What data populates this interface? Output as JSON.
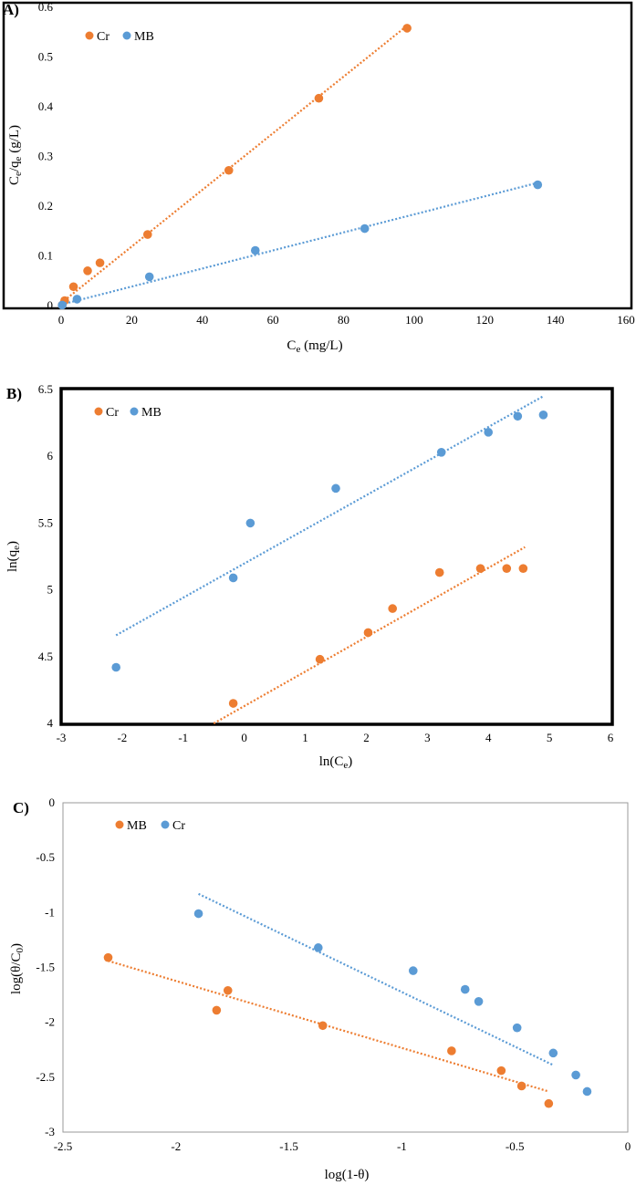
{
  "colors": {
    "orange": "#ED7D31",
    "blue": "#5B9BD5"
  },
  "chart_data": [
    {
      "type": "scatter",
      "panel_label": "A)",
      "xlabel": "Ce (mg/L)",
      "ylabel": "Ce/qe (g/L)",
      "xlim": [
        0,
        160
      ],
      "ylim": [
        0,
        0.6
      ],
      "x_ticks": [
        "0",
        "20",
        "40",
        "60",
        "80",
        "100",
        "120",
        "140",
        "160"
      ],
      "y_ticks": [
        "0",
        "0.1",
        "0.2",
        "0.3",
        "0.4",
        "0.5",
        "0.6"
      ],
      "legend": [
        "Cr",
        "MB"
      ],
      "series": [
        {
          "name": "Cr",
          "color": "orange",
          "x": [
            0.3,
            1,
            3.5,
            7.5,
            11,
            24.5,
            47.5,
            73,
            98
          ],
          "y": [
            0.001,
            0.01,
            0.038,
            0.07,
            0.086,
            0.143,
            0.272,
            0.417,
            0.558
          ],
          "trend": [
            [
              0,
              0.005
            ],
            [
              98,
              0.563
            ]
          ]
        },
        {
          "name": "MB",
          "color": "blue",
          "x": [
            0.3,
            4.5,
            25,
            55,
            86,
            135
          ],
          "y": [
            0.001,
            0.013,
            0.058,
            0.111,
            0.155,
            0.243
          ],
          "trend": [
            [
              0,
              0.002
            ],
            [
              135,
              0.247
            ]
          ]
        }
      ]
    },
    {
      "type": "scatter",
      "panel_label": "B)",
      "xlabel": "ln(Ce)",
      "ylabel": "ln(qe)",
      "xlim": [
        -3,
        6
      ],
      "ylim": [
        4,
        6.5
      ],
      "x_ticks": [
        "-3",
        "-2",
        "-1",
        "0",
        "1",
        "2",
        "3",
        "4",
        "5",
        "6"
      ],
      "y_ticks": [
        "4",
        "4.5",
        "5",
        "5.5",
        "6",
        "6.5"
      ],
      "legend": [
        "Cr",
        "MB"
      ],
      "series": [
        {
          "name": "Cr",
          "color": "orange",
          "x": [
            -0.18,
            1.24,
            2.03,
            2.43,
            3.2,
            3.87,
            4.3,
            4.57
          ],
          "y": [
            4.15,
            4.48,
            4.68,
            4.86,
            5.13,
            5.16,
            5.16,
            5.16
          ],
          "trend": [
            [
              -0.5,
              4.0
            ],
            [
              4.6,
              5.32
            ]
          ]
        },
        {
          "name": "MB",
          "color": "blue",
          "x": [
            -2.1,
            -0.18,
            0.1,
            1.5,
            3.23,
            4.0,
            4.48,
            4.9
          ],
          "y": [
            4.42,
            5.09,
            5.5,
            5.76,
            6.03,
            6.18,
            6.3,
            6.31
          ],
          "trend": [
            [
              -2.1,
              4.66
            ],
            [
              4.9,
              6.45
            ]
          ]
        }
      ]
    },
    {
      "type": "scatter",
      "panel_label": "C)",
      "xlabel": "log(1-θ)",
      "ylabel": "log(θ/C0)",
      "xlim": [
        -2.5,
        0
      ],
      "ylim": [
        -3,
        0
      ],
      "x_ticks": [
        "-2.5",
        "-2",
        "-1.5",
        "-1",
        "-0.5",
        "0"
      ],
      "y_ticks": [
        "0",
        "-0.5",
        "-1",
        "-1.5",
        "-2",
        "-2.5",
        "-3"
      ],
      "legend": [
        "MB",
        "Cr"
      ],
      "series": [
        {
          "name": "MB",
          "color": "orange",
          "x": [
            -2.3,
            -1.82,
            -1.77,
            -1.35,
            -0.78,
            -0.56,
            -0.47,
            -0.35
          ],
          "y": [
            -1.41,
            -1.89,
            -1.71,
            -2.03,
            -2.26,
            -2.44,
            -2.58,
            -2.74
          ],
          "trend": [
            [
              -2.3,
              -1.44
            ],
            [
              -0.35,
              -2.63
            ]
          ]
        },
        {
          "name": "Cr",
          "color": "blue",
          "x": [
            -1.9,
            -1.37,
            -0.95,
            -0.72,
            -0.66,
            -0.49,
            -0.33,
            -0.23,
            -0.18
          ],
          "y": [
            -1.01,
            -1.32,
            -1.53,
            -1.7,
            -1.81,
            -2.05,
            -2.28,
            -2.48,
            -2.63
          ],
          "trend": [
            [
              -1.9,
              -0.83
            ],
            [
              -0.33,
              -2.39
            ]
          ]
        }
      ]
    }
  ]
}
